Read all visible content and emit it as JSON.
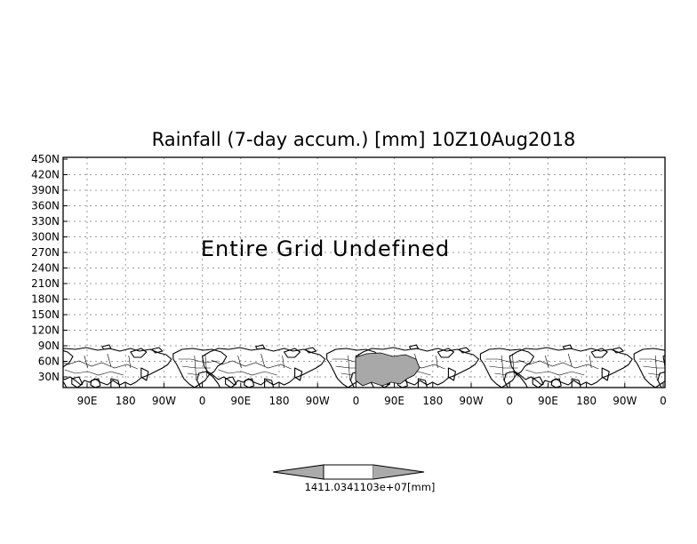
{
  "title": "Rainfall (7-day accum.) [mm] 10Z10Aug2018",
  "message": "Entire Grid Undefined",
  "y_ticks": [
    "450N",
    "420N",
    "390N",
    "360N",
    "330N",
    "300N",
    "270N",
    "240N",
    "210N",
    "180N",
    "150N",
    "120N",
    "90N",
    "60N",
    "30N"
  ],
  "x_ticks": [
    "90E",
    "180",
    "90W",
    "0",
    "90E",
    "180",
    "90W",
    "0",
    "90E",
    "180",
    "90W",
    "0",
    "90E",
    "180",
    "90W",
    "0"
  ],
  "colorbar": {
    "label": "1411.0341103e+07[mm]",
    "fill_color": "#aaaaaa",
    "center_color": "#ffffff"
  },
  "colors": {
    "land_shade": "#a8a8a8",
    "grid": "#9a9a9a"
  }
}
